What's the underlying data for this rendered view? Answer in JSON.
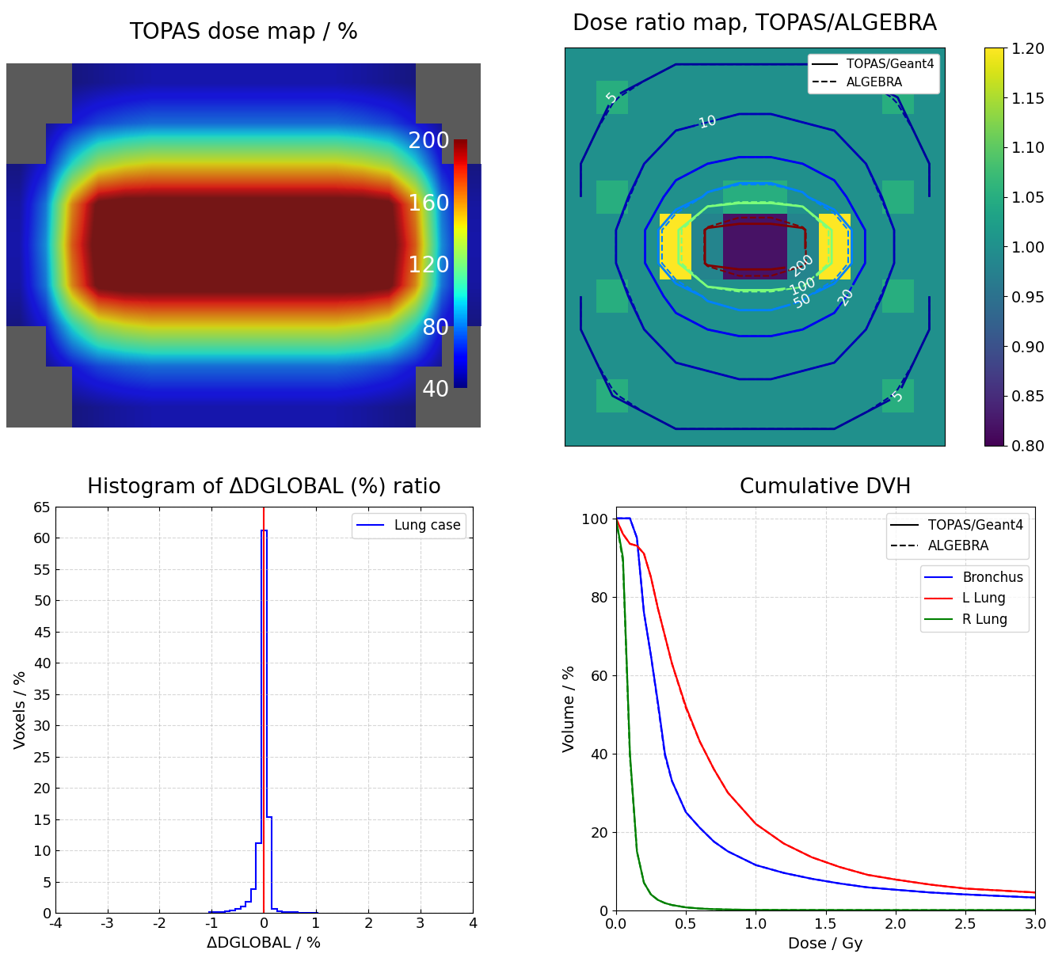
{
  "chart_data": [
    {
      "type": "heatmap",
      "title": "TOPAS dose map / %",
      "color": "jet",
      "tick_labels": false,
      "colorbar_range": [
        40,
        200
      ],
      "colorbar_ticks": [
        40,
        80,
        120,
        160,
        200
      ],
      "cells": [
        [
          null,
          null,
          42,
          45,
          48,
          50,
          50,
          50,
          50,
          50,
          50,
          50,
          50,
          48,
          45,
          42,
          null,
          null
        ],
        [
          null,
          45,
          60,
          70,
          75,
          78,
          78,
          78,
          78,
          78,
          78,
          78,
          78,
          75,
          70,
          60,
          45,
          null
        ],
        [
          42,
          60,
          100,
          130,
          140,
          145,
          145,
          145,
          145,
          145,
          145,
          145,
          145,
          140,
          130,
          100,
          60,
          42
        ],
        [
          48,
          80,
          160,
          205,
          210,
          210,
          210,
          210,
          210,
          210,
          210,
          210,
          210,
          210,
          205,
          160,
          80,
          48
        ],
        [
          50,
          85,
          170,
          210,
          215,
          215,
          215,
          215,
          215,
          215,
          215,
          215,
          215,
          215,
          210,
          170,
          85,
          50
        ],
        [
          48,
          80,
          160,
          205,
          210,
          210,
          210,
          210,
          210,
          210,
          210,
          210,
          210,
          210,
          205,
          160,
          80,
          48
        ],
        [
          42,
          60,
          100,
          130,
          140,
          145,
          145,
          145,
          145,
          145,
          145,
          145,
          145,
          140,
          130,
          100,
          60,
          42
        ],
        [
          null,
          45,
          60,
          70,
          75,
          78,
          78,
          78,
          78,
          78,
          78,
          78,
          78,
          75,
          70,
          60,
          45,
          null
        ],
        [
          null,
          null,
          42,
          45,
          48,
          50,
          50,
          50,
          50,
          50,
          50,
          50,
          50,
          48,
          45,
          42,
          null,
          null
        ]
      ]
    },
    {
      "type": "heatmap",
      "title": "Dose ratio map, TOPAS/ALGEBRA",
      "color": "viridis",
      "tick_labels": false,
      "colorbar_range": [
        0.8,
        1.2
      ],
      "colorbar_ticks": [
        {
          "value": 0.8,
          "label": "0.80"
        },
        {
          "value": 0.85,
          "label": "0.85"
        },
        {
          "value": 0.9,
          "label": "0.90"
        },
        {
          "value": 0.95,
          "label": "0.95"
        },
        {
          "value": 1.0,
          "label": "1.00"
        },
        {
          "value": 1.05,
          "label": "1.05"
        },
        {
          "value": 1.1,
          "label": "1.10"
        },
        {
          "value": 1.15,
          "label": "1.15"
        },
        {
          "value": 1.2,
          "label": "1.20"
        }
      ],
      "cells": [
        [
          1.0,
          1.0,
          1.0,
          1.0,
          1.0,
          1.0,
          1.0,
          1.0,
          1.0,
          1.0,
          1.0,
          1.0
        ],
        [
          1.0,
          1.05,
          1.0,
          1.0,
          1.0,
          1.0,
          1.0,
          1.0,
          1.0,
          1.0,
          1.05,
          1.0
        ],
        [
          1.0,
          1.0,
          1.0,
          1.0,
          1.0,
          1.0,
          1.0,
          1.0,
          1.0,
          1.0,
          1.0,
          1.0
        ],
        [
          1.0,
          1.0,
          1.0,
          1.0,
          1.0,
          1.0,
          1.0,
          1.0,
          1.0,
          1.0,
          1.0,
          1.0
        ],
        [
          1.0,
          1.05,
          1.0,
          1.0,
          1.0,
          1.05,
          1.05,
          1.0,
          1.0,
          1.0,
          1.05,
          1.0
        ],
        [
          1.0,
          1.0,
          1.0,
          1.2,
          0.98,
          0.82,
          0.82,
          0.98,
          1.2,
          1.0,
          1.0,
          1.0
        ],
        [
          1.0,
          1.0,
          1.0,
          1.2,
          0.98,
          0.82,
          0.82,
          0.98,
          1.2,
          1.0,
          1.0,
          1.0
        ],
        [
          1.0,
          1.05,
          1.0,
          1.0,
          1.0,
          1.0,
          1.0,
          1.0,
          1.0,
          1.0,
          1.05,
          1.0
        ],
        [
          1.0,
          1.0,
          1.0,
          1.0,
          1.0,
          1.0,
          1.0,
          1.0,
          1.0,
          1.0,
          1.0,
          1.0
        ],
        [
          1.0,
          1.0,
          1.0,
          1.0,
          1.0,
          1.0,
          1.0,
          1.0,
          1.0,
          1.0,
          1.0,
          1.0
        ],
        [
          1.0,
          1.05,
          1.0,
          1.0,
          1.0,
          1.0,
          1.0,
          1.0,
          1.0,
          1.0,
          1.05,
          1.0
        ],
        [
          1.0,
          1.0,
          1.0,
          1.0,
          1.0,
          1.0,
          1.0,
          1.0,
          1.0,
          1.0,
          1.0,
          1.0
        ]
      ],
      "contour_dose": [
        [
          3,
          4,
          4,
          5,
          5,
          5,
          5,
          5,
          5,
          4,
          4,
          3
        ],
        [
          4,
          5,
          6,
          7,
          7,
          8,
          8,
          7,
          7,
          6,
          5,
          4
        ],
        [
          4,
          6,
          8,
          10,
          11,
          12,
          12,
          11,
          10,
          8,
          6,
          4
        ],
        [
          5,
          7,
          10,
          15,
          20,
          22,
          22,
          20,
          15,
          10,
          7,
          5
        ],
        [
          5,
          8,
          12,
          25,
          55,
          70,
          70,
          55,
          25,
          12,
          8,
          5
        ],
        [
          6,
          9,
          18,
          90,
          210,
          230,
          230,
          210,
          90,
          18,
          9,
          6
        ],
        [
          6,
          9,
          18,
          90,
          210,
          230,
          230,
          210,
          90,
          18,
          9,
          6
        ],
        [
          5,
          8,
          12,
          25,
          55,
          70,
          70,
          55,
          25,
          12,
          8,
          5
        ],
        [
          5,
          7,
          10,
          15,
          20,
          22,
          22,
          20,
          15,
          10,
          7,
          5
        ],
        [
          4,
          6,
          8,
          10,
          11,
          12,
          12,
          11,
          10,
          8,
          6,
          4
        ],
        [
          4,
          5,
          6,
          7,
          7,
          8,
          8,
          7,
          7,
          6,
          5,
          4
        ],
        [
          3,
          4,
          4,
          5,
          5,
          5,
          5,
          5,
          5,
          4,
          4,
          3
        ]
      ],
      "contour_levels": [
        5,
        10,
        20,
        50,
        100,
        200
      ],
      "series": [
        {
          "name": "TOPAS/Geant4",
          "line_style": "solid"
        },
        {
          "name": "ALGEBRA",
          "line_style": "dashed"
        }
      ],
      "legend": "upper right"
    },
    {
      "type": "histogram",
      "title": "Histogram of ΔDGLOBAL (%) ratio",
      "x_label": "ΔDGLOBAL / %",
      "y_label": "Voxels / %",
      "bins": [
        -1.05,
        -0.95,
        -0.85,
        -0.75,
        -0.65,
        -0.55,
        -0.45,
        -0.35,
        -0.25,
        -0.15,
        -0.05,
        0.05,
        0.15,
        0.25,
        0.35,
        0.45,
        0.55,
        0.65,
        0.75,
        0.85,
        0.95,
        1.05
      ],
      "series": [
        {
          "name": "Lung case",
          "color": "blue",
          "values": [
            0.1,
            0.15,
            0.2,
            0.3,
            0.4,
            0.6,
            1.0,
            1.8,
            3.8,
            11.2,
            61.2,
            15.3,
            0.6,
            0.3,
            0.2,
            0.15,
            0.1,
            0.08,
            0.05,
            0.04,
            0.03
          ]
        }
      ],
      "reference_line": {
        "x": 0,
        "color": "red"
      },
      "xlim": [
        -4,
        4
      ],
      "xticks": [
        -4,
        -3,
        -2,
        -1,
        0,
        1,
        2,
        3,
        4
      ],
      "ylim": [
        0,
        65
      ],
      "yticks": [
        0,
        5,
        10,
        15,
        20,
        25,
        30,
        35,
        40,
        45,
        50,
        55,
        60,
        65
      ],
      "grid": true,
      "legend": "upper right"
    },
    {
      "type": "line",
      "title": "Cumulative DVH",
      "x_label": "Dose / Gy",
      "y_label": "Volume / %",
      "x": [
        0,
        0.05,
        0.1,
        0.15,
        0.2,
        0.25,
        0.3,
        0.35,
        0.4,
        0.5,
        0.6,
        0.7,
        0.8,
        1.0,
        1.2,
        1.4,
        1.6,
        1.8,
        2.0,
        2.25,
        2.5,
        2.75,
        3.0
      ],
      "codes": [
        {
          "name": "TOPAS/Geant4",
          "line_style": "solid"
        },
        {
          "name": "ALGEBRA",
          "line_style": "dashed"
        }
      ],
      "series": [
        {
          "name": "Bronchus",
          "color": "blue",
          "values": {
            "TOPAS/Geant4": [
              100,
              100,
              100,
              95,
              76,
              65,
              53,
              40,
              33,
              25,
              21,
              17.5,
              15,
              11.5,
              9.5,
              8,
              6.8,
              5.8,
              5.2,
              4.5,
              4,
              3.6,
              3.2
            ],
            "ALGEBRA": [
              100,
              100,
              100,
              95,
              76,
              65,
              52.5,
              39.5,
              33,
              25,
              21,
              17.5,
              15,
              11.5,
              9.5,
              8,
              6.8,
              5.8,
              5.2,
              4.5,
              4,
              3.6,
              3.2
            ]
          }
        },
        {
          "name": "L Lung",
          "color": "red",
          "values": {
            "TOPAS/Geant4": [
              100,
              96,
              93.5,
              93,
              91,
              85,
              77,
              70,
              63,
              52,
              43,
              36,
              30,
              22,
              17,
              13.5,
              11,
              9,
              7.8,
              6.5,
              5.5,
              5,
              4.5
            ],
            "ALGEBRA": [
              100,
              96,
              93.5,
              93,
              91,
              85,
              77,
              70,
              63,
              51.6,
              43,
              36,
              30,
              22,
              17,
              13.5,
              11,
              9,
              7.8,
              6.5,
              5.5,
              5,
              4.5
            ]
          }
        },
        {
          "name": "R Lung",
          "color": "green",
          "values": {
            "TOPAS/Geant4": [
              100,
              90,
              40,
              15,
              7,
              4,
              2.6,
              1.8,
              1.3,
              0.7,
              0.4,
              0.25,
              0.15,
              0.06,
              0.03,
              0.02,
              0.01,
              0.01,
              0,
              0,
              0,
              0,
              0
            ],
            "ALGEBRA": [
              100,
              89,
              39,
              15,
              7,
              4,
              2.6,
              1.8,
              1.3,
              0.7,
              0.4,
              0.25,
              0.15,
              0.06,
              0.03,
              0.02,
              0.01,
              0.01,
              0,
              0,
              0,
              0,
              0
            ]
          }
        }
      ],
      "xlim": [
        0,
        3.0
      ],
      "xticks": [
        {
          "value": 0,
          "label": "0.0"
        },
        0.5,
        {
          "value": 1,
          "label": "1.0"
        },
        1.5,
        {
          "value": 2,
          "label": "2.0"
        },
        2.5,
        {
          "value": 3,
          "label": "3.0"
        }
      ],
      "ylim": [
        0,
        103
      ],
      "yticks": [
        0,
        20,
        40,
        60,
        80,
        100
      ],
      "grid": true,
      "legend": "upper right"
    }
  ]
}
